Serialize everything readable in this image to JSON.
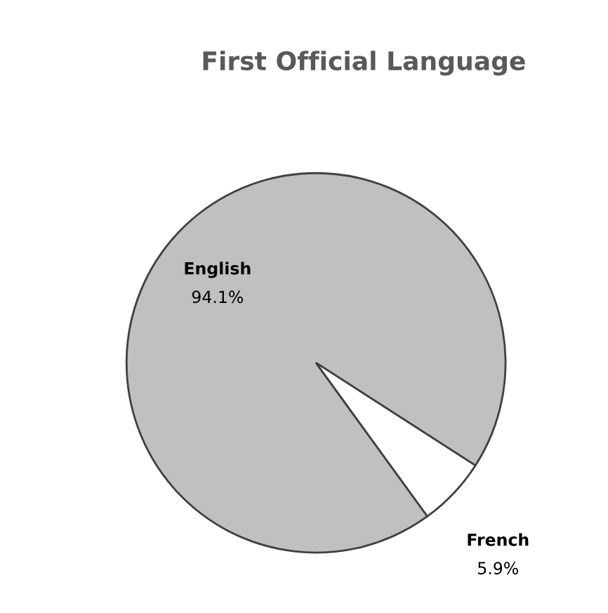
{
  "chart_data": {
    "type": "pie",
    "title": "First Official Language",
    "categories": [
      "English",
      "French"
    ],
    "values": [
      94.1,
      5.9
    ],
    "value_labels": [
      "94.1%",
      "5.9%"
    ],
    "colors": [
      "#c0c0c0",
      "#ffffff"
    ],
    "legend": false
  }
}
